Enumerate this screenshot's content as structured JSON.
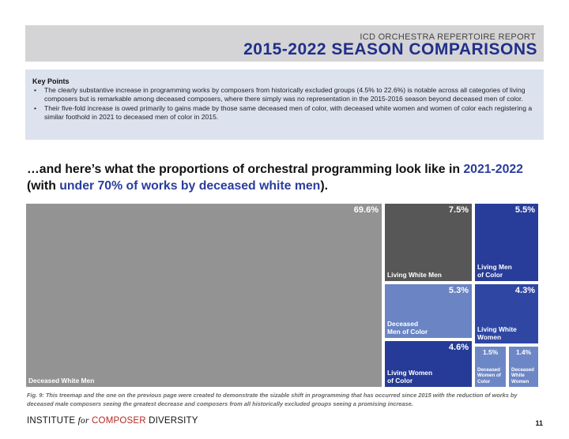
{
  "header": {
    "subtitle": "ICD ORCHESTRA REPERTOIRE REPORT",
    "title": "2015-2022 SEASON COMPARISONS"
  },
  "key_points": {
    "heading": "Key Points",
    "bullet": "•",
    "items": [
      "The clearly substantive increase in programming works by composers from historically excluded groups (4.5% to 22.6%) is notable across all categories of living composers but is remarkable among deceased composers, where there simply was no representation in the 2015-2016 season beyond deceased men of color.",
      "Their five-fold increase is owed primarily to gains made by those same deceased men of color, with deceased white women and women of color each registering a similar foothold in 2021 to deceased men of color in 2015."
    ]
  },
  "headline": {
    "part1": "…and here’s what the proportions of orchestral programming look like in ",
    "highlight1": "2021-2022",
    "part2": "(with ",
    "highlight2": "under 70% of works by deceased white men",
    "part3": ")."
  },
  "chart_data": {
    "type": "treemap",
    "items": [
      {
        "label": "Deceased White Men",
        "pct_text": "69.6%",
        "value": 69.6,
        "color": "#939393"
      },
      {
        "label": "Living White Men",
        "pct_text": "7.5%",
        "value": 7.5,
        "color": "#575757"
      },
      {
        "label": "Living Men of Color",
        "pct_text": "5.5%",
        "value": 5.5,
        "color": "#283d99"
      },
      {
        "label": "Deceased Men of Color",
        "pct_text": "5.3%",
        "value": 5.3,
        "color": "#6a84c4"
      },
      {
        "label": "Living White Women",
        "pct_text": "4.3%",
        "value": 4.3,
        "color": "#2f47a3"
      },
      {
        "label": "Living Women of Color",
        "pct_text": "4.6%",
        "value": 4.6,
        "color": "#263b97"
      },
      {
        "label": "Deceased Women of Color",
        "pct_text": "1.5%",
        "value": 1.5,
        "color": "#6d87c6"
      },
      {
        "label": "Deceased White Women",
        "pct_text": "1.4%",
        "value": 1.4,
        "color": "#6d87c6"
      }
    ]
  },
  "caption": "Fig. 9: This treemap and the one on the previous page were created to demonstrate the sizable shift in programming that has occurred since 2015 with the reduction of works by deceased male composers seeing the greatest decrease and composers from all historically excluded groups seeing a promising increase.",
  "footer": {
    "brand_part1": "INSTITUTE ",
    "brand_for": "for",
    "brand_part2": " COMPOSER",
    "brand_part3": " DIVERSITY",
    "page_number": "11"
  }
}
